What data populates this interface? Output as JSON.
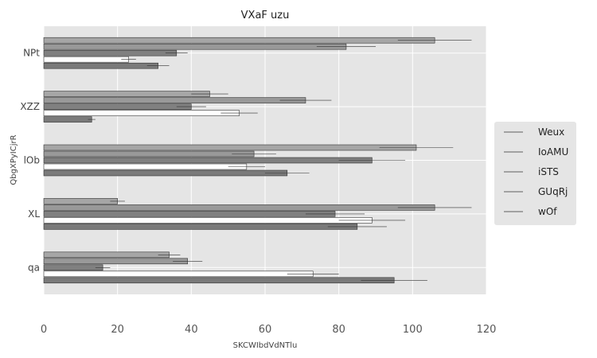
{
  "chart_data": {
    "type": "bar",
    "orientation": "horizontal",
    "title": "VXaF uzu",
    "xlabel": "SKCWIbdVdNTlu",
    "ylabel": "QbgXPyICjrR",
    "xlim": [
      0,
      120
    ],
    "xticks": [
      "0",
      "20",
      "40",
      "60",
      "80",
      "100",
      "120"
    ],
    "grid": true,
    "legend_position": "right",
    "categories": [
      "qa",
      "XL",
      "lOb",
      "XZZ",
      "NPt"
    ],
    "series": [
      {
        "name": "Weux",
        "color": "#a6a6a6",
        "values": [
          34,
          20,
          101,
          45,
          106
        ],
        "errors": [
          3,
          2,
          10,
          5,
          10
        ]
      },
      {
        "name": "IoAMU",
        "color": "#999999",
        "values": [
          39,
          106,
          57,
          71,
          82
        ],
        "errors": [
          4,
          10,
          6,
          7,
          8
        ]
      },
      {
        "name": "iSTS",
        "color": "#808080",
        "values": [
          16,
          79,
          89,
          40,
          36
        ],
        "errors": [
          2,
          8,
          9,
          4,
          3
        ]
      },
      {
        "name": "GUqRj",
        "color": "#ffffff",
        "values": [
          73,
          89,
          55,
          53,
          23
        ],
        "errors": [
          7,
          9,
          5,
          5,
          2
        ]
      },
      {
        "name": "wOf",
        "color": "#7a7a7a",
        "values": [
          95,
          85,
          66,
          13,
          31
        ],
        "errors": [
          9,
          8,
          6,
          1,
          3
        ]
      }
    ]
  }
}
